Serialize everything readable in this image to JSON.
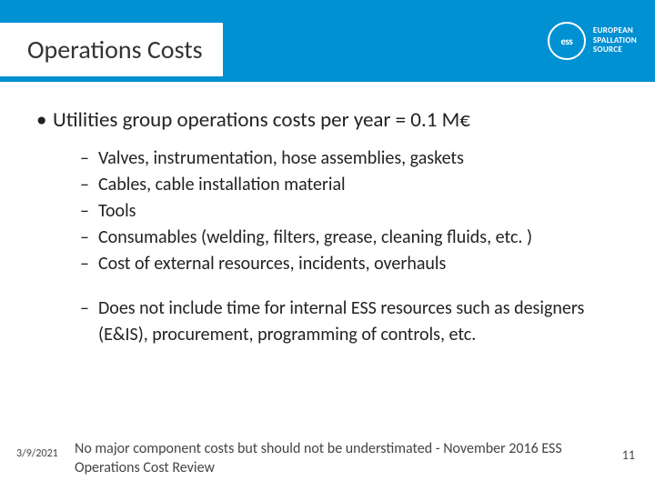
{
  "header": {
    "title": "Operations Costs",
    "logo_abbrev": "ess",
    "logo_text_l1": "EUROPEAN",
    "logo_text_l2": "SPALLATION",
    "logo_text_l3": "SOURCE",
    "bg_color": "#0091d2"
  },
  "main": {
    "bullet": "Utilities group operations costs per year = 0.1 M€",
    "sub_items": [
      "Valves, instrumentation, hose assemblies, gaskets",
      "Cables, cable installation material",
      "Tools",
      "Consumables (welding, filters, grease, cleaning fluids, etc. )",
      "Cost of external resources, incidents, overhauls"
    ],
    "note_items": [
      "Does not include time for internal ESS resources such as designers (E&IS), procurement, programming of controls, etc."
    ]
  },
  "footer": {
    "date": "3/9/2021",
    "note": "No major component costs but should not be understimated - November 2016 ESS Operations Cost Review",
    "page": "11"
  }
}
